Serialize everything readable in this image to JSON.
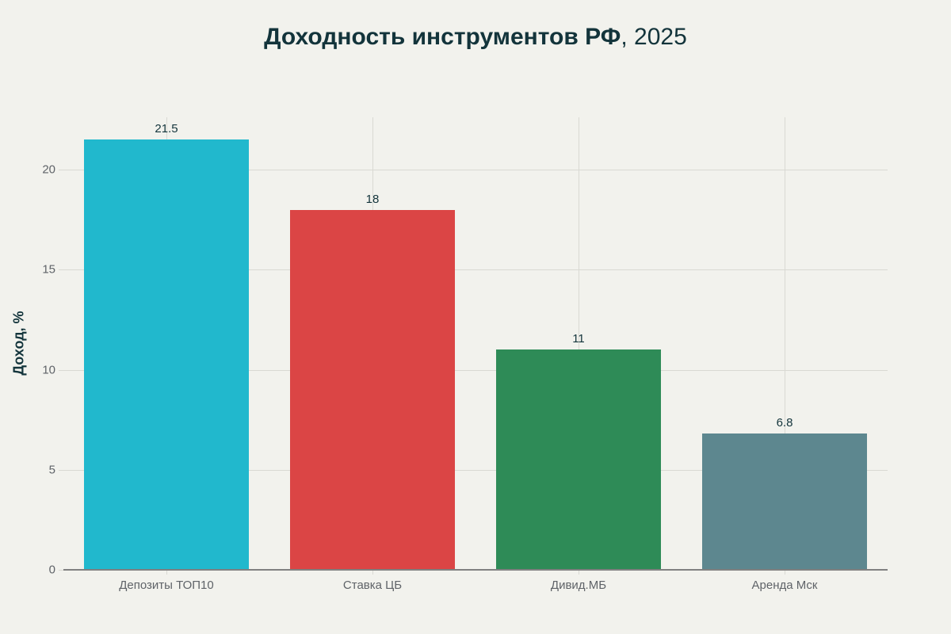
{
  "title": {
    "bold": "Доходность инструментов РФ",
    "light": ", 2025"
  },
  "chart_data": {
    "type": "bar",
    "title": "Доходность инструментов РФ, 2025",
    "xlabel": "",
    "ylabel": "Доход, %",
    "categories": [
      "Депозиты ТОП10",
      "Ставка ЦБ",
      "Дивид.МБ",
      "Аренда Мск"
    ],
    "values": [
      21.5,
      18,
      11,
      6.8
    ],
    "value_labels": [
      "21.5",
      "18",
      "11",
      "6.8"
    ],
    "colors": [
      "#21b8cd",
      "#db4545",
      "#2e8b57",
      "#5d878f"
    ],
    "yticks": [
      0,
      5,
      10,
      15,
      20
    ],
    "ylim": [
      0,
      22.6
    ],
    "grid": true,
    "legend": null
  }
}
